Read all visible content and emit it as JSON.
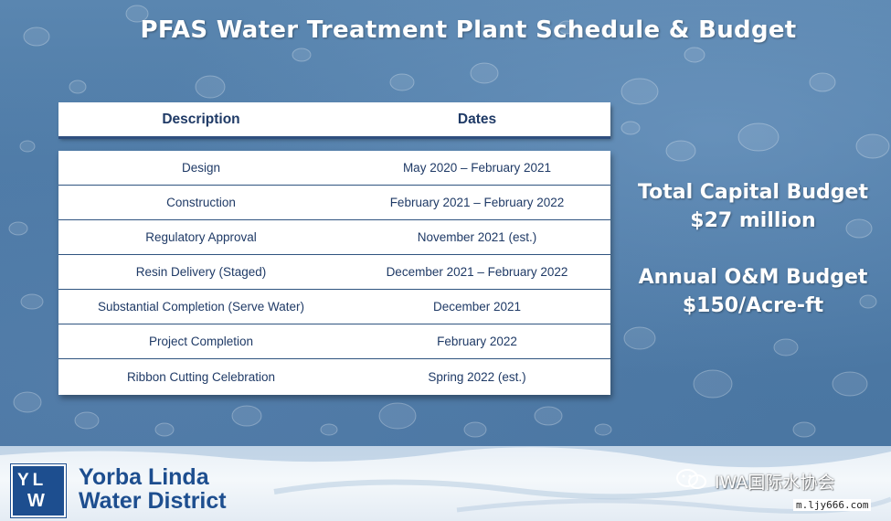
{
  "slide": {
    "title": "PFAS Water Treatment Plant Schedule & Budget"
  },
  "table": {
    "headers": {
      "description": "Description",
      "dates": "Dates"
    },
    "rows": [
      {
        "description": "Design",
        "dates": "May 2020 – February 2021"
      },
      {
        "description": "Construction",
        "dates": "February 2021 – February 2022"
      },
      {
        "description": "Regulatory Approval",
        "dates": "November 2021 (est.)"
      },
      {
        "description": "Resin Delivery (Staged)",
        "dates": "December  2021 – February 2022"
      },
      {
        "description": "Substantial Completion (Serve Water)",
        "dates": "December 2021"
      },
      {
        "description": "Project Completion",
        "dates": "February 2022"
      },
      {
        "description": "Ribbon Cutting Celebration",
        "dates": "Spring 2022 (est.)"
      }
    ]
  },
  "budget": {
    "capital_label": "Total Capital Budget",
    "capital_value": "$27 million",
    "om_label": "Annual O&M Budget",
    "om_value": "$150/Acre-ft"
  },
  "footer": {
    "logo_mark_top": "YL",
    "logo_mark_bottom": "W",
    "logo_line1": "Yorba Linda",
    "logo_line2": "Water District",
    "watermark": "IWA国际水协会",
    "url": "m.ljy666.com"
  },
  "colors": {
    "navy": "#1f3a66",
    "brand_blue": "#1d4e8f",
    "background_blue": "#4d7aa6"
  }
}
